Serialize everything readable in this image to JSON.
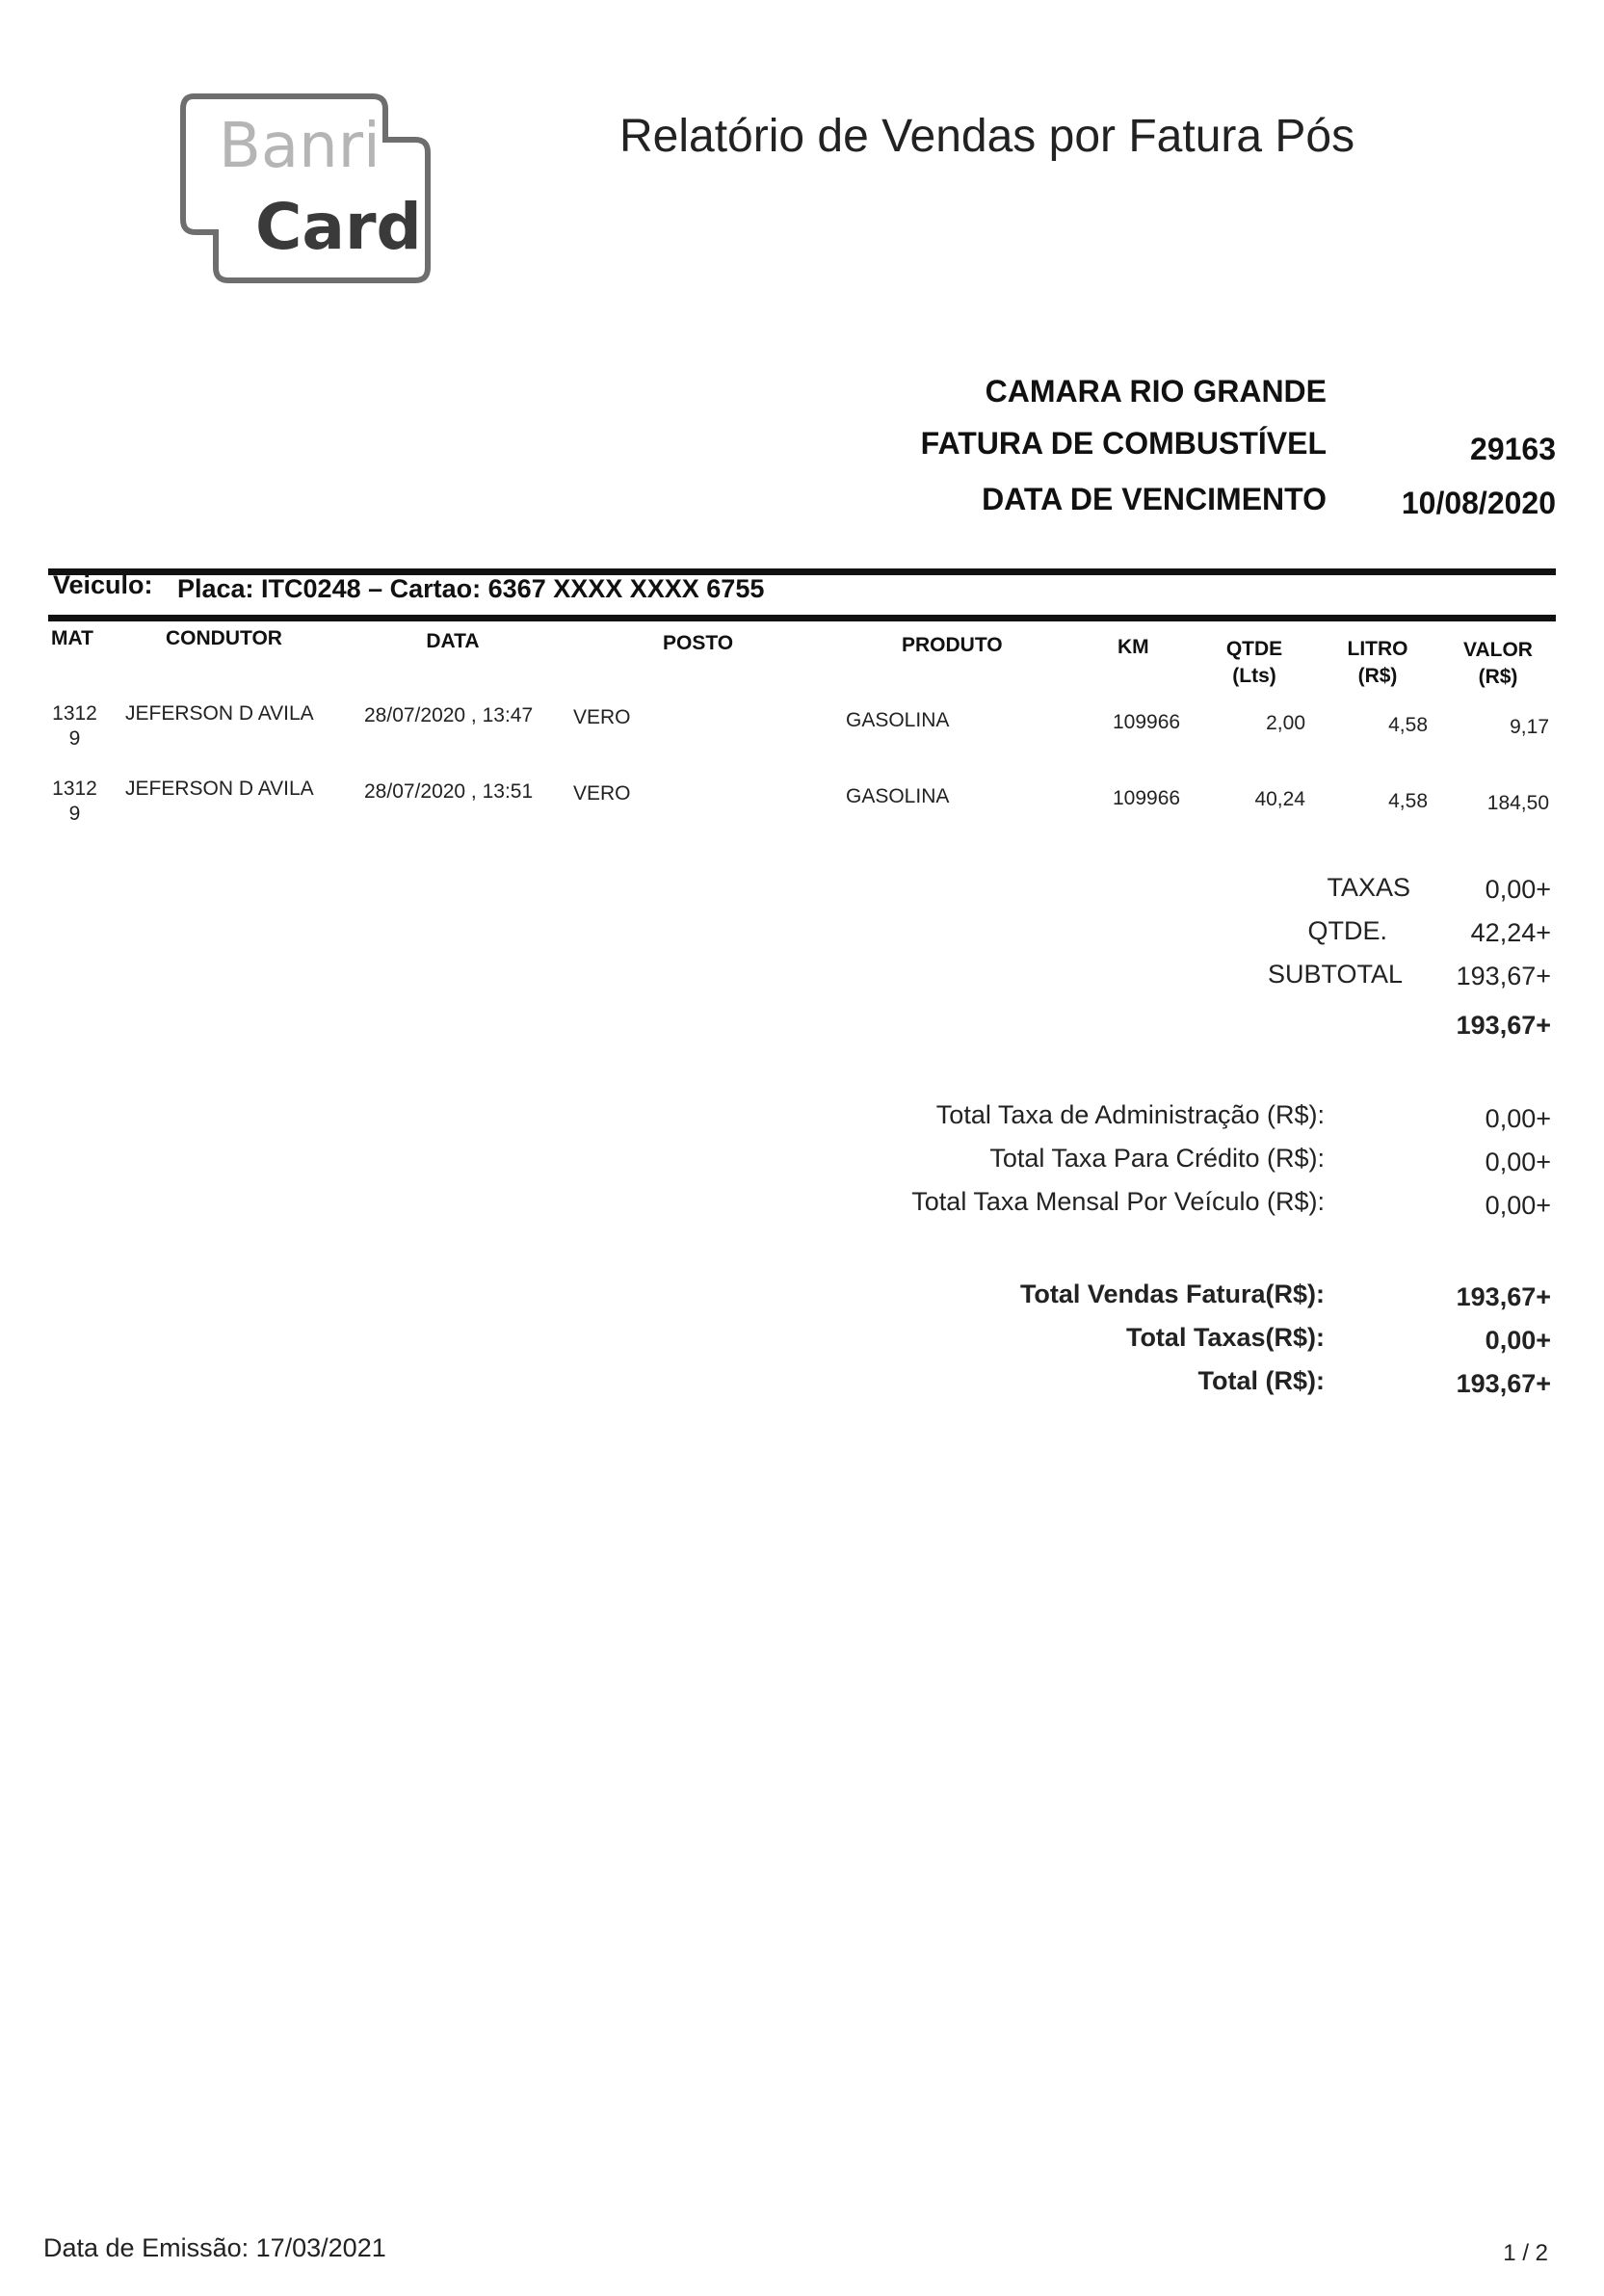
{
  "logo": {
    "text_top": "Banri",
    "text_bottom": "Card"
  },
  "title": "Relatório de Vendas por Fatura Pós",
  "header": {
    "client": "CAMARA RIO GRANDE",
    "invoice_label": "FATURA DE COMBUSTÍVEL",
    "invoice_number": "29163",
    "due_label": "DATA DE VENCIMENTO",
    "due_date": "10/08/2020"
  },
  "vehicle": {
    "label": "Veiculo:",
    "info": "Placa: ITC0248 – Cartao: 6367 XXXX XXXX 6755"
  },
  "table": {
    "columns": [
      {
        "l1": "MAT",
        "l2": ""
      },
      {
        "l1": "CONDUTOR",
        "l2": ""
      },
      {
        "l1": "DATA",
        "l2": ""
      },
      {
        "l1": "POSTO",
        "l2": ""
      },
      {
        "l1": "PRODUTO",
        "l2": ""
      },
      {
        "l1": "KM",
        "l2": ""
      },
      {
        "l1": "QTDE",
        "l2": "(Lts)"
      },
      {
        "l1": "LITRO",
        "l2": "(R$)"
      },
      {
        "l1": "VALOR",
        "l2": "(R$)"
      }
    ],
    "rows": [
      {
        "mat": "1312",
        "mat2": "9",
        "condutor": "JEFERSON D AVILA",
        "data": "28/07/2020 , 13:47",
        "posto": "VERO",
        "produto": "GASOLINA",
        "km": "109966",
        "qtde": "2,00",
        "litro": "4,58",
        "valor": "9,17"
      },
      {
        "mat": "1312",
        "mat2": "9",
        "condutor": "JEFERSON D AVILA",
        "data": "28/07/2020 , 13:51",
        "posto": "VERO",
        "produto": "GASOLINA",
        "km": "109966",
        "qtde": "40,24",
        "litro": "4,58",
        "valor": "184,50"
      }
    ]
  },
  "summary": {
    "taxas_label": "TAXAS",
    "taxas": "0,00+",
    "qtde_label": "QTDE.",
    "qtde": "42,24+",
    "subtotal_label": "SUBTOTAL",
    "subtotal": "193,67+",
    "grand": "193,67+"
  },
  "fees": [
    {
      "label": "Total Taxa de Administração (R$):",
      "value": "0,00+"
    },
    {
      "label": "Total Taxa Para Crédito (R$):",
      "value": "0,00+"
    },
    {
      "label": "Total Taxa Mensal Por Veículo (R$):",
      "value": "0,00+"
    }
  ],
  "totals": [
    {
      "label": "Total Vendas Fatura(R$):",
      "value": "193,67+"
    },
    {
      "label": "Total Taxas(R$):",
      "value": "0,00+"
    },
    {
      "label": "Total (R$):",
      "value": "193,67+"
    }
  ],
  "footer": {
    "emission": "Data de Emissão: 17/03/2021",
    "page": "1 / 2"
  }
}
